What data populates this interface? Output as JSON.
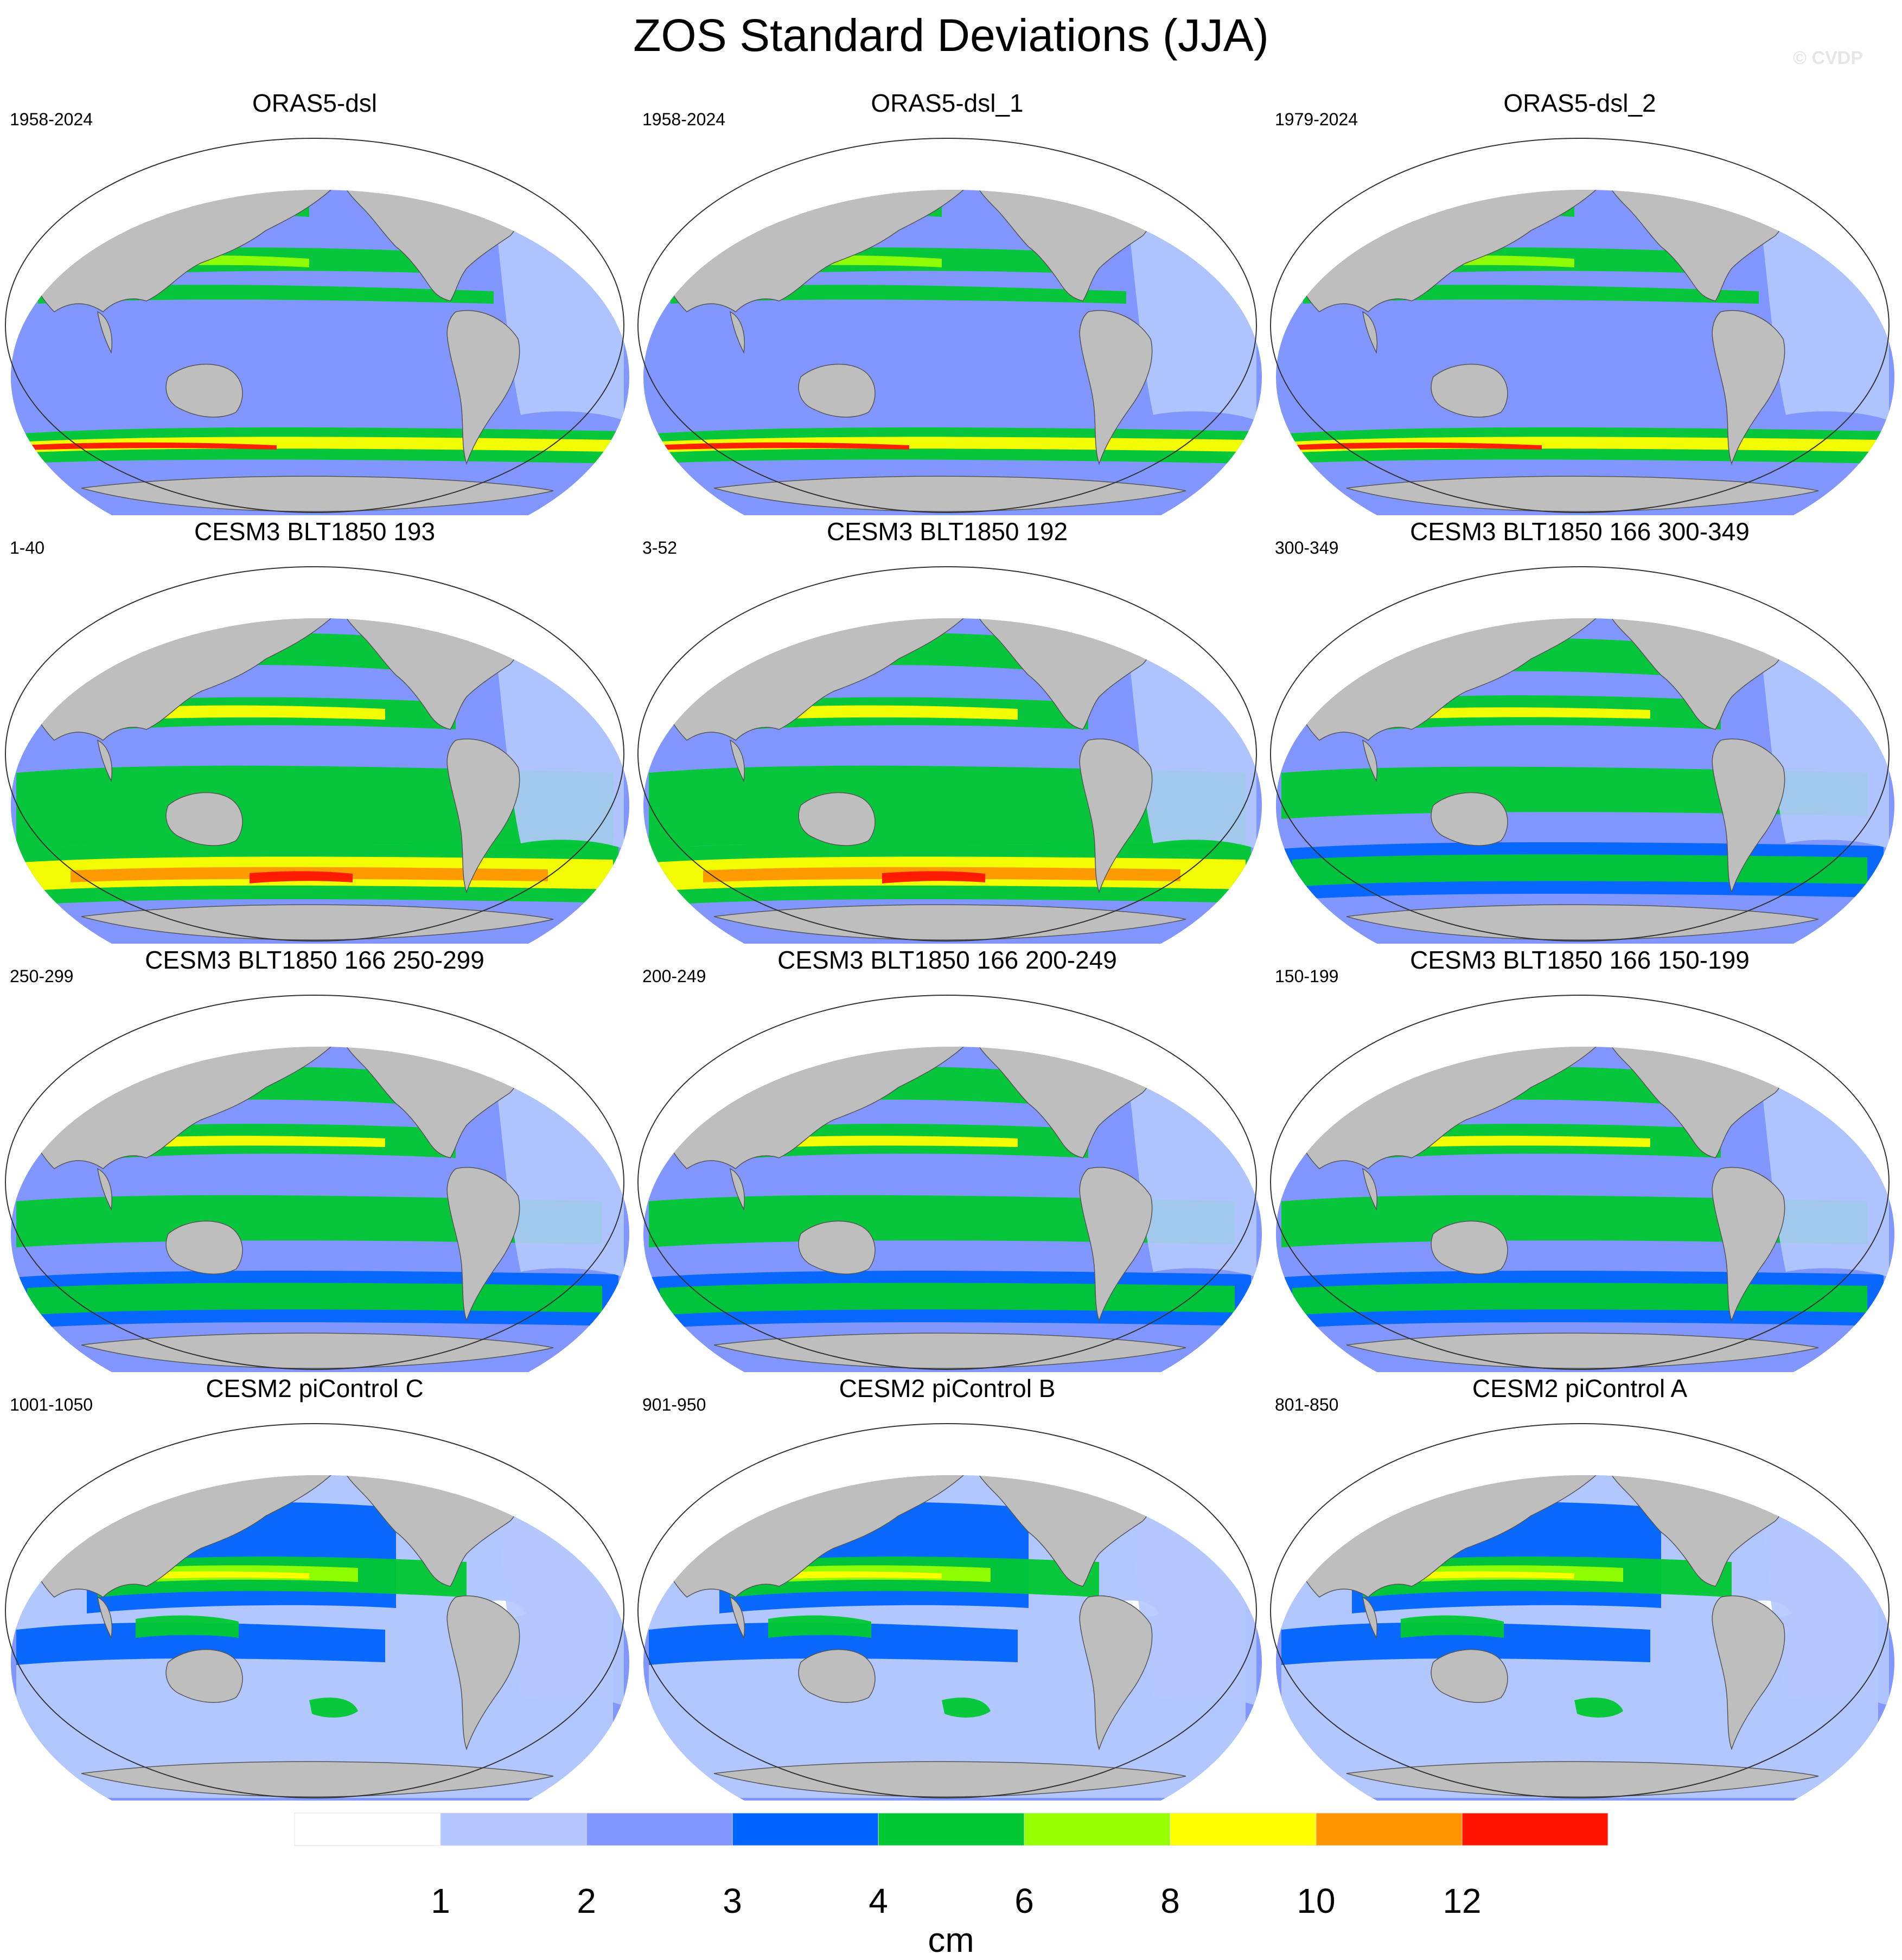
{
  "title": "ZOS Standard Deviations (JJA)",
  "watermark": "© CVDP",
  "panels": [
    {
      "name": "ORAS5-dsl",
      "period": "1958-2024",
      "style": "obs"
    },
    {
      "name": "ORAS5-dsl_1",
      "period": "1958-2024",
      "style": "obs"
    },
    {
      "name": "ORAS5-dsl_2",
      "period": "1979-2024",
      "style": "obs"
    },
    {
      "name": "CESM3 BLT1850 193",
      "period": "1-40",
      "style": "cesm3hi"
    },
    {
      "name": "CESM3 BLT1850 192",
      "period": "3-52",
      "style": "cesm3hi"
    },
    {
      "name": "CESM3 BLT1850 166 300-349",
      "period": "300-349",
      "style": "cesm3"
    },
    {
      "name": "CESM3 BLT1850 166 250-299",
      "period": "250-299",
      "style": "cesm3"
    },
    {
      "name": "CESM3 BLT1850 166 200-249",
      "period": "200-249",
      "style": "cesm3"
    },
    {
      "name": "CESM3 BLT1850 166 150-199",
      "period": "150-199",
      "style": "cesm3"
    },
    {
      "name": "CESM2 piControl C",
      "period": "1001-1050",
      "style": "cesm2"
    },
    {
      "name": "CESM2 piControl B",
      "period": "901-950",
      "style": "cesm2"
    },
    {
      "name": "CESM2 piControl A",
      "period": "801-850",
      "style": "cesm2"
    }
  ],
  "colorbar": {
    "units": "cm",
    "labels": [
      "1",
      "2",
      "3",
      "4",
      "6",
      "8",
      "10",
      "12"
    ],
    "colors": [
      "#ffffff",
      "#b4c8ff",
      "#8296ff",
      "#0064ff",
      "#00c832",
      "#96ff00",
      "#ffff00",
      "#ff9600",
      "#ff1400"
    ]
  },
  "colors": {
    "land": "#bebebe",
    "ocean_low": "#b4c8ff"
  }
}
